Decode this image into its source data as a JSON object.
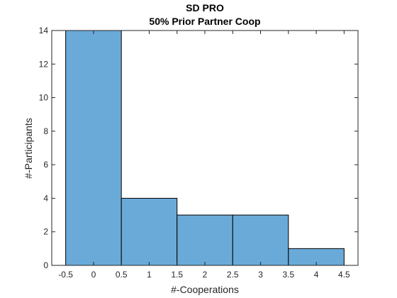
{
  "chart_data": {
    "type": "bar",
    "title": "SD PRO",
    "subtitle": "50% Prior Partner Coop",
    "xlabel": "#-Cooperations",
    "ylabel": "#-Participants",
    "bin_edges": [
      -0.5,
      0.5,
      1.5,
      2.5,
      3.5,
      4.5
    ],
    "values": [
      14,
      4,
      3,
      3,
      1
    ],
    "xlim": [
      -0.75,
      4.75
    ],
    "ylim": [
      0,
      14
    ],
    "x_ticks": [
      -0.5,
      0,
      0.5,
      1,
      1.5,
      2,
      2.5,
      3,
      3.5,
      4,
      4.5
    ],
    "x_tick_labels": [
      "-0.5",
      "0",
      "0.5",
      "1",
      "1.5",
      "2",
      "2.5",
      "3",
      "3.5",
      "4",
      "4.5"
    ],
    "y_ticks": [
      0,
      2,
      4,
      6,
      8,
      10,
      12,
      14
    ],
    "y_tick_labels": [
      "0",
      "2",
      "4",
      "6",
      "8",
      "10",
      "12",
      "14"
    ],
    "grid": false,
    "bar_color": "#6aaad8",
    "bar_edge_color": "#000000",
    "axis_color": "#262626"
  }
}
